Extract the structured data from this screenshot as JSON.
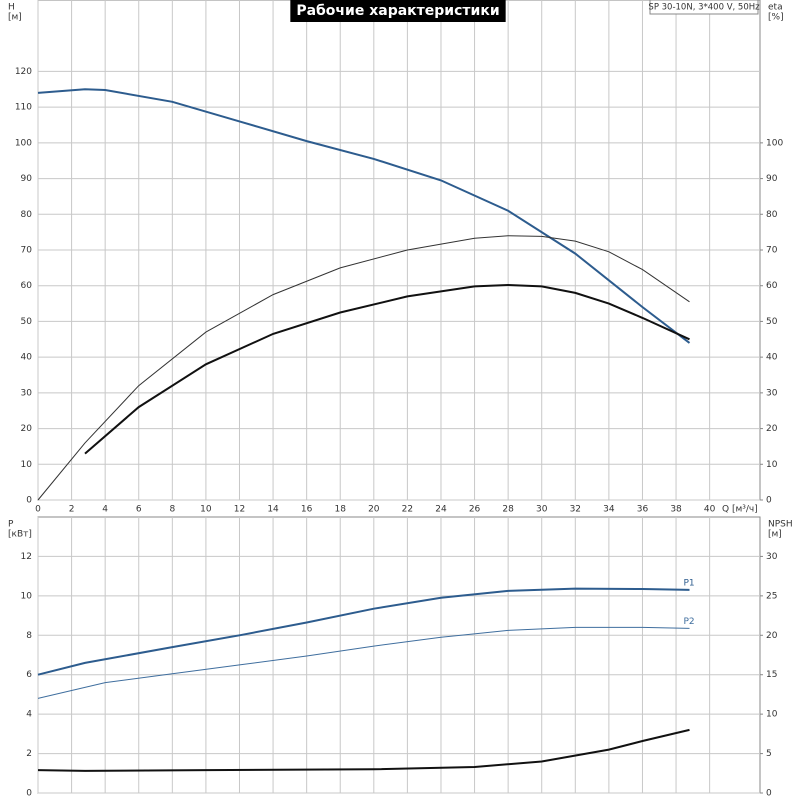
{
  "chart_data": [
    {
      "type": "line",
      "title": "Рабочие характеристики",
      "subtitle": "SP 30-10N, 3*400 V, 50Hz",
      "y_label": "H",
      "y_unit": "[м]",
      "y2_label": "eta",
      "y2_unit": "[%]",
      "x_label": "Q [м³/ч]",
      "xlim": [
        0,
        43
      ],
      "xticks": [
        0,
        2,
        4,
        6,
        8,
        10,
        12,
        14,
        16,
        18,
        20,
        22,
        24,
        26,
        28,
        30,
        32,
        34,
        36,
        38,
        40
      ],
      "ylim": [
        0,
        140
      ],
      "yticks": [
        0,
        10,
        20,
        30,
        40,
        50,
        60,
        70,
        80,
        90,
        100,
        110,
        120
      ],
      "y2lim": [
        0,
        140
      ],
      "y2ticks": [
        0,
        10,
        20,
        30,
        40,
        50,
        60,
        70,
        80,
        90,
        100
      ],
      "grid": true,
      "x_tick_labels": true,
      "series": [
        {
          "color": "#2d5c8e",
          "line_width": 2,
          "x": [
            0,
            2.8,
            4,
            8,
            12,
            16,
            20,
            24,
            28,
            32,
            36,
            38.8
          ],
          "values": [
            114,
            115,
            114.8,
            111.5,
            106,
            100.5,
            95.5,
            89.5,
            81,
            69,
            54,
            44
          ]
        },
        {
          "color": "#333333",
          "line_width": 1,
          "axis": "y2",
          "x": [
            0,
            2.8,
            6,
            10,
            14,
            18,
            22,
            26,
            28,
            30,
            32,
            34,
            36,
            38.8
          ],
          "values": [
            0,
            16,
            32,
            47,
            57.5,
            65,
            70,
            73.3,
            74,
            73.8,
            72.5,
            69.5,
            64.5,
            55.5
          ]
        },
        {
          "color": "#111111",
          "line_width": 2,
          "axis": "y2",
          "x": [
            2.8,
            6,
            10,
            14,
            18,
            22,
            26,
            28,
            30,
            32,
            34,
            36,
            38.8
          ],
          "values": [
            13,
            26,
            38,
            46.5,
            52.5,
            57,
            59.8,
            60.2,
            59.8,
            58,
            55,
            51,
            45
          ]
        }
      ]
    },
    {
      "type": "line",
      "y_label": "P",
      "y_unit": "[кВт]",
      "y2_label": "NPSH",
      "y2_unit": "[м]",
      "xlim": [
        0,
        43
      ],
      "xticks": [
        0,
        2,
        4,
        6,
        8,
        10,
        12,
        14,
        16,
        18,
        20,
        22,
        24,
        26,
        28,
        30,
        32,
        34,
        36,
        38,
        40
      ],
      "ylim": [
        0,
        14
      ],
      "yticks": [
        0,
        2,
        4,
        6,
        8,
        10,
        12
      ],
      "y2lim": [
        0,
        35
      ],
      "y2ticks": [
        0,
        5,
        10,
        15,
        20,
        25,
        30
      ],
      "grid": true,
      "x_tick_labels": false,
      "series": [
        {
          "name": "P1",
          "color": "#2d5c8e",
          "line_width": 2,
          "x": [
            0,
            2.8,
            8,
            12,
            16,
            20,
            24,
            28,
            32,
            36,
            38.8
          ],
          "values": [
            6,
            6.6,
            7.4,
            8,
            8.65,
            9.35,
            9.9,
            10.25,
            10.37,
            10.35,
            10.3
          ]
        },
        {
          "name": "P2",
          "color": "#3f6e9e",
          "line_width": 1,
          "x": [
            0,
            4,
            8,
            12,
            16,
            20,
            24,
            28,
            32,
            36,
            38.8
          ],
          "values": [
            4.8,
            5.6,
            6.05,
            6.5,
            6.95,
            7.45,
            7.9,
            8.25,
            8.4,
            8.4,
            8.35
          ]
        },
        {
          "color": "#111111",
          "line_width": 2,
          "axis": "y2",
          "x": [
            0,
            2.8,
            10,
            20,
            26,
            30,
            34,
            36,
            38.8
          ],
          "values": [
            2.9,
            2.8,
            2.9,
            3.0,
            3.3,
            4.0,
            5.5,
            6.6,
            8.0
          ]
        }
      ]
    }
  ]
}
